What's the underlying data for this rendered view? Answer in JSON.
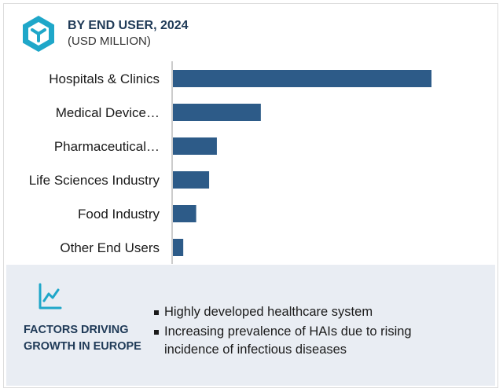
{
  "header": {
    "title": "BY END USER, 2024",
    "subtitle": "(USD MILLION)",
    "logo_icon": "cube-logo-icon"
  },
  "colors": {
    "bar": "#2d5b88",
    "accent": "#1fa7c9",
    "panel": "#e9edf3"
  },
  "chart_data": {
    "type": "bar",
    "orientation": "horizontal",
    "title": "BY END USER, 2024",
    "subtitle": "(USD MILLION)",
    "categories": [
      "Hospitals & Clinics",
      "Medical Device…",
      "Pharmaceutical…",
      "Life Sciences Industry",
      "Food Industry",
      "Other End Users"
    ],
    "values": [
      100,
      34,
      17,
      14,
      9,
      4
    ],
    "grid": false
  },
  "factors": {
    "icon": "trend-chart-icon",
    "heading": "FACTORS DRIVING GROWTH IN EUROPE",
    "items": [
      "Highly developed healthcare system",
      "Increasing prevalence of HAIs due to rising incidence of infectious diseases"
    ]
  }
}
